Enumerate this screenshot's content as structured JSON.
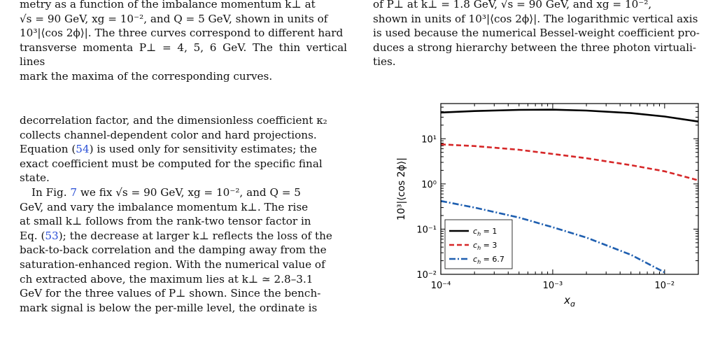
{
  "left_caption": {
    "line1": "metry as a function of the imbalance momentum k⊥ at",
    "line2": "√s = 90 GeV, xg = 10⁻², and Q = 5 GeV, shown in units of",
    "line3": "10³|⟨cos 2ϕ⟩|. The three curves correspond to different hard",
    "line4": "transverse momenta P⊥ = 4, 5, 6 GeV. The thin vertical lines",
    "line5": "mark the maxima of the corresponding curves."
  },
  "left_body": {
    "p1_l1": "decorrelation factor, and the dimensionless coefficient κ₂",
    "p1_l2": "collects channel-dependent color and hard projections.",
    "p1_l3a": "Equation (",
    "p1_l3_ref": "54",
    "p1_l3b": ") is used only for sensitivity estimates; the",
    "p1_l4": "exact coefficient must be computed for the specific final",
    "p1_l5": "state.",
    "p2_l1a": "In Fig. ",
    "p2_l1_ref": "7",
    "p2_l1b": " we fix √s = 90 GeV, xg = 10⁻², and Q = 5",
    "p2_l2": "GeV, and vary the imbalance momentum k⊥. The rise",
    "p2_l3": "at small k⊥ follows from the rank-two tensor factor in",
    "p2_l4a": "Eq. (",
    "p2_l4_ref": "53",
    "p2_l4b": "); the decrease at larger k⊥ reflects the loss of the",
    "p2_l5": "back-to-back correlation and the damping away from the",
    "p2_l6": "saturation-enhanced region. With the numerical value of",
    "p2_l7": "ch extracted above, the maximum lies at k⊥ ≃ 2.8–3.1",
    "p2_l8": "GeV for the three values of P⊥ shown. Since the bench-",
    "p2_l9": "mark signal is below the per-mille level, the ordinate is"
  },
  "right_caption": {
    "line1": "of P⊥ at k⊥ = 1.8 GeV, √s = 90 GeV, and xg = 10⁻²,",
    "line2": "shown in units of 10³|⟨cos 2ϕ⟩|. The logarithmic vertical axis",
    "line3": "is used because the numerical Bessel-weight coefficient pro-",
    "line4": "duces a strong hierarchy between the three photon virtuali-",
    "line5": "ties."
  },
  "chart_data": {
    "type": "line",
    "xlabel": "x_g",
    "ylabel": "10³|⟨cos 2ϕ⟩|",
    "xscale": "log",
    "yscale": "log",
    "xlim": [
      0.0001,
      0.02
    ],
    "ylim": [
      0.01,
      60
    ],
    "xticks": [
      "10⁻⁴",
      "10⁻³",
      "10⁻²"
    ],
    "yticks": [
      "10⁻²",
      "10⁻¹",
      "10⁰",
      "10¹"
    ],
    "legend_position": "lower-left",
    "series": [
      {
        "name": "c_h = 1",
        "color": "#000000",
        "style": "solid",
        "x": [
          0.0001,
          0.0002,
          0.0005,
          0.001,
          0.002,
          0.005,
          0.01,
          0.02
        ],
        "y": [
          38,
          41,
          43.5,
          44,
          42,
          37,
          31,
          24
        ]
      },
      {
        "name": "c_h = 3",
        "color": "#d62728",
        "style": "dashed",
        "x": [
          0.0001,
          0.0002,
          0.0005,
          0.001,
          0.002,
          0.005,
          0.01,
          0.02
        ],
        "y": [
          7.5,
          6.9,
          5.7,
          4.6,
          3.7,
          2.6,
          1.9,
          1.2
        ]
      },
      {
        "name": "c_h = 6.7",
        "color": "#1f5fb0",
        "style": "dashdot",
        "x": [
          0.0001,
          0.0002,
          0.0005,
          0.001,
          0.002,
          0.005,
          0.01
        ],
        "y": [
          0.42,
          0.3,
          0.18,
          0.11,
          0.065,
          0.027,
          0.011
        ]
      }
    ]
  }
}
